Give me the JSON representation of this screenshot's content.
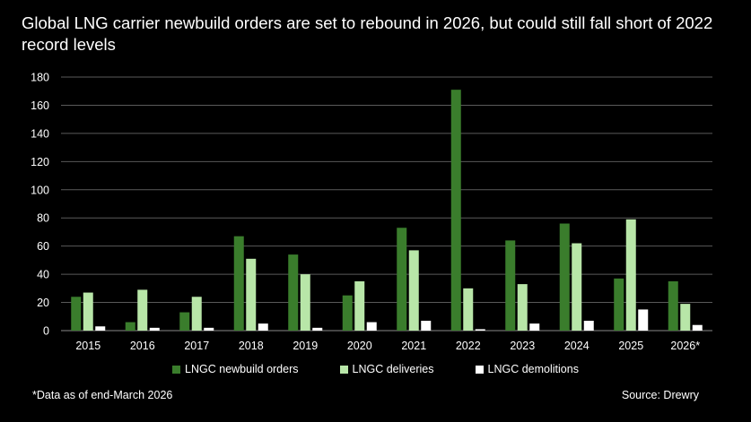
{
  "title": "Global LNG carrier newbuild orders are set to rebound in 2026, but could still fall short of 2022 record levels",
  "footnote": "*Data as of end-March 2026",
  "source": "Source: Drewry",
  "colors": {
    "background": "#000000",
    "orders": "#3a7d2c",
    "deliveries": "#b8e6a8",
    "demolitions": "#ffffff",
    "grid": "#5a5a5a",
    "text": "#ffffff"
  },
  "chart_data": {
    "type": "bar",
    "title": "Global LNG carrier newbuild orders are set to rebound in 2026, but could still fall short of 2022 record levels",
    "xlabel": "",
    "ylabel": "",
    "ylim": [
      0,
      180
    ],
    "yticks": [
      0,
      20,
      40,
      60,
      80,
      100,
      120,
      140,
      160,
      180
    ],
    "grid": true,
    "legend_position": "bottom",
    "categories": [
      "2015",
      "2016",
      "2017",
      "2018",
      "2019",
      "2020",
      "2021",
      "2022",
      "2023",
      "2024",
      "2025",
      "2026*"
    ],
    "series": [
      {
        "name": "LNGC newbuild orders",
        "color": "#3a7d2c",
        "values": [
          24,
          6,
          13,
          67,
          54,
          25,
          73,
          171,
          64,
          76,
          37,
          35
        ]
      },
      {
        "name": "LNGC deliveries",
        "color": "#b8e6a8",
        "values": [
          27,
          29,
          24,
          51,
          40,
          35,
          57,
          30,
          33,
          62,
          79,
          19
        ]
      },
      {
        "name": "LNGC demolitions",
        "color": "#ffffff",
        "values": [
          3,
          2,
          2,
          5,
          2,
          6,
          7,
          1,
          5,
          7,
          15,
          4
        ]
      }
    ]
  }
}
